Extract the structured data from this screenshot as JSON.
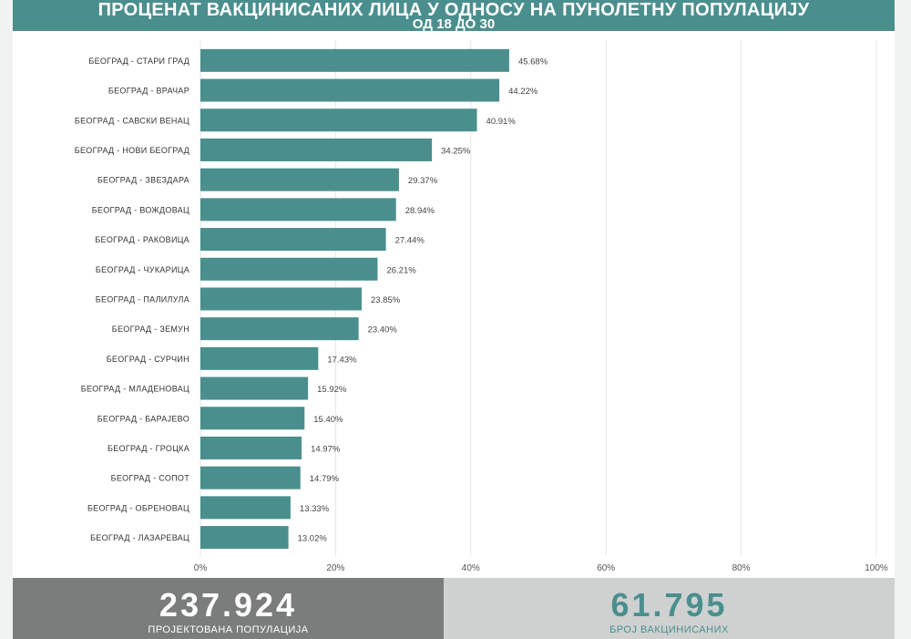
{
  "header": {
    "title_line1": "ПРОЦЕНАТ ВАКЦИНИСАНИХ ЛИЦА У ОДНОСУ НА ПУНОЛЕТНУ ПОПУЛАЦИЈУ",
    "title_line2": "ОД 18 ДО 30"
  },
  "chart_data": {
    "type": "bar",
    "orientation": "horizontal",
    "categories": [
      "БЕОГРАД - СТАРИ ГРАД",
      "БЕОГРАД - ВРАЧАР",
      "БЕОГРАД - САВСКИ ВЕНАЦ",
      "БЕОГРАД - НОВИ БЕОГРАД",
      "БЕОГРАД - ЗВЕЗДАРА",
      "БЕОГРАД - ВОЖДОВАЦ",
      "БЕОГРАД - РАКОВИЦА",
      "БЕОГРАД - ЧУКАРИЦА",
      "БЕОГРАД - ПАЛИЛУЛА",
      "БЕОГРАД - ЗЕМУН",
      "БЕОГРАД - СУРЧИН",
      "БЕОГРАД - МЛАДЕНОВАЦ",
      "БЕОГРАД - БАРАЈЕВО",
      "БЕОГРАД - ГРОЦКА",
      "БЕОГРАД - СОПОТ",
      "БЕОГРАД - ОБРЕНОВАЦ",
      "БЕОГРАД - ЛАЗАРЕВАЦ"
    ],
    "values": [
      45.68,
      44.22,
      40.91,
      34.25,
      29.37,
      28.94,
      27.44,
      26.21,
      23.85,
      23.4,
      17.43,
      15.92,
      15.4,
      14.97,
      14.79,
      13.33,
      13.02
    ],
    "value_labels": [
      "45.68%",
      "44.22%",
      "40.91%",
      "34.25%",
      "29.37%",
      "28.94%",
      "27.44%",
      "26.21%",
      "23.85%",
      "23.40%",
      "17.43%",
      "15.92%",
      "15.40%",
      "14.97%",
      "14.79%",
      "13.33%",
      "13.02%"
    ],
    "xlim": [
      0,
      100
    ],
    "xticks": [
      0,
      20,
      40,
      60,
      80,
      100
    ],
    "xtick_labels": [
      "0%",
      "20%",
      "40%",
      "60%",
      "80%",
      "100%"
    ],
    "grid": "vertical",
    "bar_color": "#4a8f8d"
  },
  "stats": {
    "population_value": "237.924",
    "population_label": "ПРОЈЕКТОВАНА ПОПУЛАЦИЈА",
    "vaccinated_value": "61.795",
    "vaccinated_label": "БРОЈ ВАКЦИНИСАНИХ"
  },
  "colors": {
    "accent": "#4a8f8d",
    "stat_left_bg": "#7b7d7d",
    "stat_right_bg": "#cfd1d1"
  }
}
